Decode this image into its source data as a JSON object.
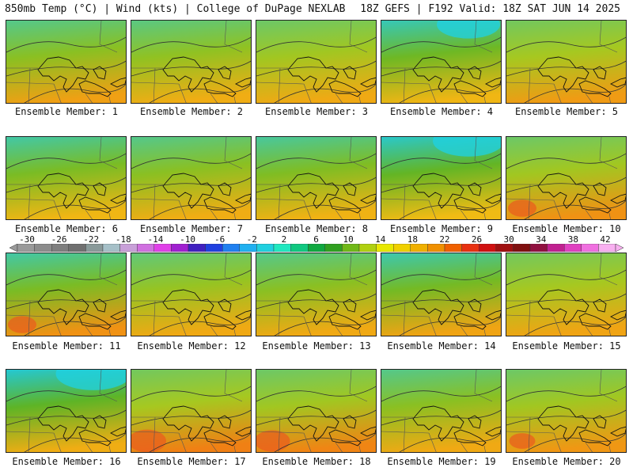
{
  "header": {
    "left": "850mb Temp (°C) | Wind (kts) | College of DuPage NEXLAB",
    "right": "18Z GEFS | F192 Valid: 18Z SAT JUN 14 2025"
  },
  "colorbar": {
    "labels": [
      "-30",
      "-26",
      "-22",
      "-18",
      "-14",
      "-10",
      "-6",
      "-2",
      "2",
      "6",
      "10",
      "14",
      "18",
      "22",
      "26",
      "30",
      "34",
      "38",
      "42"
    ],
    "colors": [
      "#9a9a9a",
      "#8c8c8c",
      "#7e7e7e",
      "#707070",
      "#8a9a9a",
      "#a6c0c8",
      "#c8a0d8",
      "#d070e0",
      "#e040e8",
      "#a020d0",
      "#4020c0",
      "#2040e0",
      "#2080f0",
      "#20b0f0",
      "#20d0e0",
      "#20e8c0",
      "#10c880",
      "#10a840",
      "#30a020",
      "#70b818",
      "#b0d010",
      "#e8e800",
      "#f0d000",
      "#f0b000",
      "#f09000",
      "#f06000",
      "#e83010",
      "#d01010",
      "#a01010",
      "#801010",
      "#901040",
      "#c02090",
      "#e040c0",
      "#f070e0",
      "#f8b0f0"
    ]
  },
  "members": [
    {
      "label": "Ensemble Member: 1",
      "cool": 0.55,
      "hot": 0.45
    },
    {
      "label": "Ensemble Member: 2",
      "cool": 0.5,
      "hot": 0.3
    },
    {
      "label": "Ensemble Member: 3",
      "cool": 0.35,
      "hot": 0.35
    },
    {
      "label": "Ensemble Member: 4",
      "cool": 0.8,
      "hot": 0.2
    },
    {
      "label": "Ensemble Member: 5",
      "cool": 0.3,
      "hot": 0.5
    },
    {
      "label": "Ensemble Member: 6",
      "cool": 0.7,
      "hot": 0.2
    },
    {
      "label": "Ensemble Member: 7",
      "cool": 0.55,
      "hot": 0.3
    },
    {
      "label": "Ensemble Member: 8",
      "cool": 0.65,
      "hot": 0.25
    },
    {
      "label": "Ensemble Member: 9",
      "cool": 0.9,
      "hot": 0.15
    },
    {
      "label": "Ensemble Member: 10",
      "cool": 0.35,
      "hot": 0.6
    },
    {
      "label": "Ensemble Member: 11",
      "cool": 0.7,
      "hot": 0.6
    },
    {
      "label": "Ensemble Member: 12",
      "cool": 0.45,
      "hot": 0.35
    },
    {
      "label": "Ensemble Member: 13",
      "cool": 0.55,
      "hot": 0.35
    },
    {
      "label": "Ensemble Member: 14",
      "cool": 0.75,
      "hot": 0.4
    },
    {
      "label": "Ensemble Member: 15",
      "cool": 0.3,
      "hot": 0.4
    },
    {
      "label": "Ensemble Member: 16",
      "cool": 0.95,
      "hot": 0.3
    },
    {
      "label": "Ensemble Member: 17",
      "cool": 0.3,
      "hot": 0.8
    },
    {
      "label": "Ensemble Member: 18",
      "cool": 0.35,
      "hot": 0.75
    },
    {
      "label": "Ensemble Member: 19",
      "cool": 0.55,
      "hot": 0.35
    },
    {
      "label": "Ensemble Member: 20",
      "cool": 0.35,
      "hot": 0.55
    }
  ]
}
